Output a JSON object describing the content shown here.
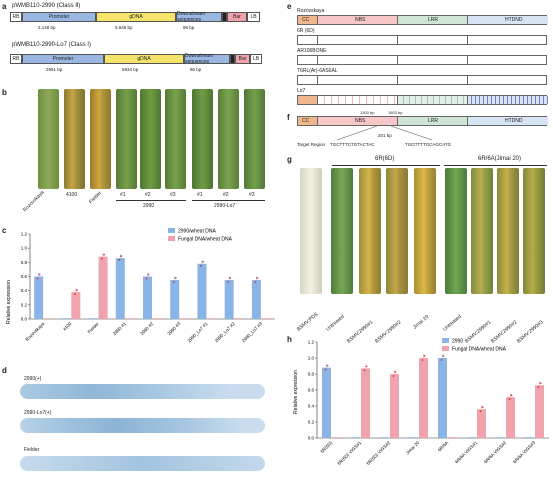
{
  "panels": {
    "a": "a",
    "b": "b",
    "c": "c",
    "d": "d",
    "e": "e",
    "f": "f",
    "g": "g",
    "h": "h"
  },
  "a": {
    "construct1": "pWMB110-2990 (Class Ⅱ)",
    "construct2": "pWMB110-2990-Lo7 (Class Ⅰ)",
    "rb": "RB",
    "lb": "LB",
    "bar": "Bar",
    "promoter": "Promoter",
    "gdna": "gDNA",
    "downstream": "Downstream sequences",
    "len1_prom": "2.148 bp",
    "len1_gdna": "5.846 bp",
    "len1_down": "96 bp",
    "len2_prom": "2951 bp",
    "len2_gdna": "5934 bp",
    "len2_down": "96 bp"
  },
  "b": {
    "labels": [
      "Rozovskaya",
      "4100",
      "Fielder",
      "#1",
      "#2",
      "#3",
      "#1",
      "#2",
      "#3"
    ],
    "group1": "2990",
    "group2": "2990-Lo7"
  },
  "c": {
    "ylabel": "Relative expression",
    "legend": [
      "2990/wheat DNA",
      "Fungal DNA/wheat DNA"
    ],
    "colors": {
      "blue": "#8ab4e6",
      "pink": "#f0a3ac",
      "dot": "#d9363e"
    },
    "yticks": [
      "0.0",
      "0.2",
      "0.4",
      "0.6",
      "0.8",
      "1.0",
      "1.2"
    ]
  },
  "chart_data": [
    {
      "type": "bar",
      "ylabel": "Relative expression",
      "ylim": [
        0,
        1.2
      ],
      "categories": [
        "Rozovskaya",
        "4100",
        "Fielder",
        "2990 #1",
        "2990 #2",
        "2990 #3",
        "2990_Lo7 #1",
        "2990_Lo7 #2",
        "2990_Lo7 #3"
      ],
      "series": [
        {
          "name": "2990/wheat DNA",
          "values": [
            0.6,
            0,
            0,
            0.86,
            0.6,
            0.55,
            0.78,
            0.55,
            0.55
          ]
        },
        {
          "name": "Fungal DNA/wheat DNA",
          "values": [
            0,
            0.38,
            0.88,
            0,
            0,
            0,
            0,
            0,
            0
          ]
        }
      ]
    },
    {
      "type": "bar",
      "ylabel": "Relative expression",
      "ylim": [
        0,
        1.2
      ],
      "categories": [
        "6R(6D)",
        "6R(6D) VIGS#1",
        "6R(6D) VIGS#2",
        "Jimai 20",
        "6R/6A",
        "6R/6A VIGS#1",
        "6R/6A VIGS#2",
        "6R/6A VIGS#3"
      ],
      "series": [
        {
          "name": "2990",
          "values": [
            0.88,
            0,
            0,
            0,
            1.0,
            0,
            0,
            0
          ]
        },
        {
          "name": "Fungal DNA/wheat DNA",
          "values": [
            0,
            0.87,
            0.8,
            1.0,
            0,
            0.36,
            0.51,
            0.66
          ]
        }
      ]
    }
  ],
  "d": {
    "l1": "2990(+)",
    "l2": "2990-Lo7(+)",
    "l3": "Fielder"
  },
  "e": {
    "header": "Rozovskaya",
    "domains": [
      "CC",
      "NBS",
      "LRR",
      "HTDND"
    ],
    "rows": [
      "6R (6D)",
      "AR106BONE",
      "T6RL(Ar)-6AS6AL",
      "Lo7"
    ]
  },
  "f": {
    "domains": [
      "CC",
      "NBS",
      "LRR",
      "HTDND"
    ],
    "pos1": "1303 bp",
    "pos2": "1503 bp",
    "len": "201 bp",
    "target_label": "Target Region",
    "seq1": "TGCTTTCTGTACTAC",
    "seq2": "TGGTTTTGCAGCATG"
  },
  "g": {
    "group1": "6R(6D)",
    "group2": "6R/6A(Jimai 20)",
    "labels": [
      "BSMV:PDS",
      "Untreated",
      "BSMV:2990#1",
      "BSMV:2990#2",
      "Jimai 20",
      "Untreated",
      "BSMV:2990#1",
      "BSMV:2990#2",
      "BSMV:2990#3"
    ]
  },
  "h": {
    "ylabel": "Relative expression",
    "legend": [
      "2990",
      "Fungal DNA/wheat DNA"
    ],
    "yticks": [
      "0.0",
      "0.2",
      "0.4",
      "0.6",
      "0.8",
      "1.0",
      "1.2"
    ]
  }
}
